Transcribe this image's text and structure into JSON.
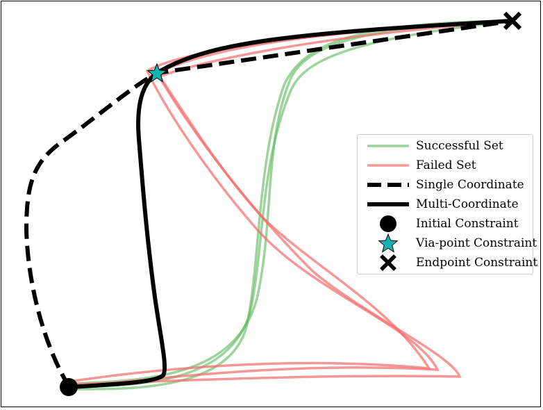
{
  "legend": {
    "items": [
      {
        "label": "Successful Set",
        "kind": "line",
        "color": "#5cb85c",
        "style": "solid",
        "opacity": 0.6
      },
      {
        "label": "Failed Set",
        "kind": "line",
        "color": "#f26b6b",
        "style": "solid",
        "opacity": 0.7
      },
      {
        "label": "Single Coordinate",
        "kind": "line",
        "color": "#000000",
        "style": "dashed"
      },
      {
        "label": "Multi-Coordinate",
        "kind": "line",
        "color": "#000000",
        "style": "solid"
      },
      {
        "label": "Initial Constraint",
        "kind": "marker",
        "marker": "circle",
        "color": "#000000"
      },
      {
        "label": "Via-point Constraint",
        "kind": "marker",
        "marker": "star",
        "color": "#17b3b3"
      },
      {
        "label": "Endpoint Constraint",
        "kind": "marker",
        "marker": "x",
        "color": "#000000"
      }
    ]
  },
  "colors": {
    "successful": "#5cb85c",
    "failed": "#f26b6b",
    "trajectory": "#000000",
    "via_point": "#17b3b3"
  }
}
